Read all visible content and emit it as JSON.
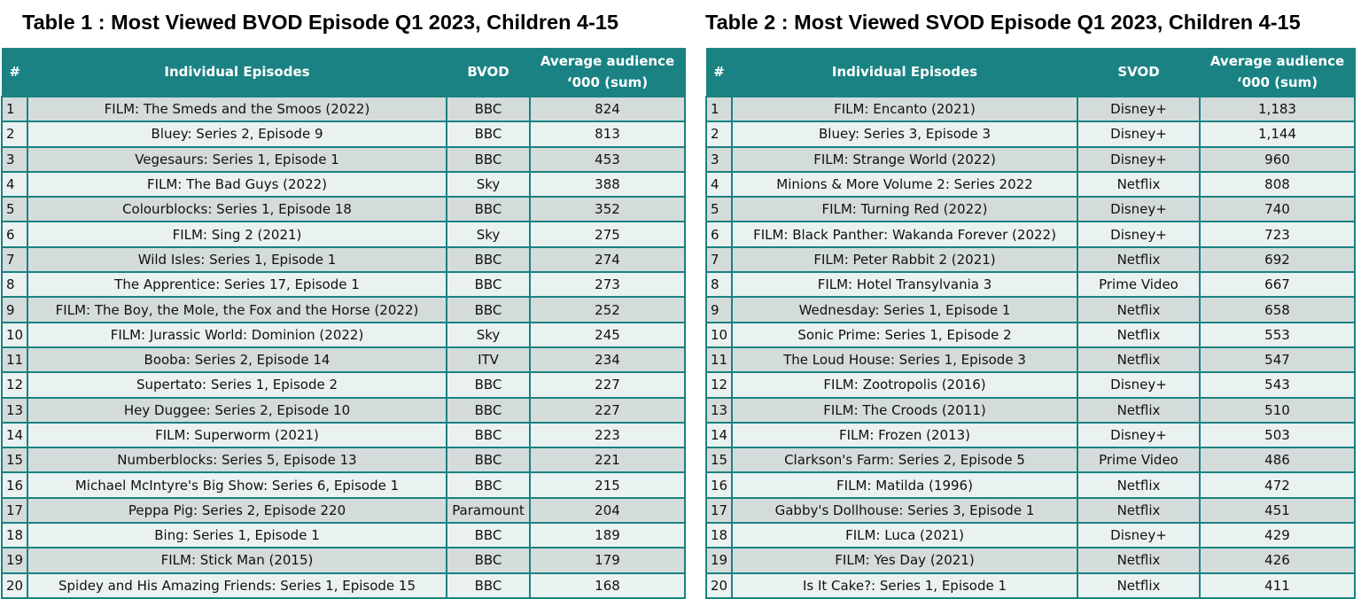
{
  "table1": {
    "title": "Table 1 : Most Viewed BVOD Episode Q1 2023, Children 4-15",
    "headers": [
      "#",
      "Individual Episodes",
      "BVOD",
      "Average audience\n‘000 (sum)"
    ],
    "rows": [
      [
        "1",
        "FILM: The Smeds and the Smoos (2022)",
        "BBC",
        "824"
      ],
      [
        "2",
        "Bluey: Series 2, Episode 9",
        "BBC",
        "813"
      ],
      [
        "3",
        "Vegesaurs: Series 1, Episode 1",
        "BBC",
        "453"
      ],
      [
        "4",
        "FILM: The Bad Guys (2022)",
        "Sky",
        "388"
      ],
      [
        "5",
        "Colourblocks: Series 1, Episode 18",
        "BBC",
        "352"
      ],
      [
        "6",
        "FILM: Sing 2 (2021)",
        "Sky",
        "275"
      ],
      [
        "7",
        "Wild Isles: Series 1, Episode 1",
        "BBC",
        "274"
      ],
      [
        "8",
        "The Apprentice: Series 17, Episode 1",
        "BBC",
        "273"
      ],
      [
        "9",
        "FILM: The Boy, the Mole, the Fox and the Horse (2022)",
        "BBC",
        "252"
      ],
      [
        "10",
        "FILM: Jurassic World: Dominion (2022)",
        "Sky",
        "245"
      ],
      [
        "11",
        "Booba: Series 2, Episode 14",
        "ITV",
        "234"
      ],
      [
        "12",
        "Supertato: Series 1, Episode 2",
        "BBC",
        "227"
      ],
      [
        "13",
        "Hey Duggee: Series 2, Episode 10",
        "BBC",
        "227"
      ],
      [
        "14",
        "FILM: Superworm (2021)",
        "BBC",
        "223"
      ],
      [
        "15",
        "Numberblocks: Series 5, Episode 13",
        "BBC",
        "221"
      ],
      [
        "16",
        "Michael McIntyre's Big Show: Series 6, Episode 1",
        "BBC",
        "215"
      ],
      [
        "17",
        "Peppa Pig: Series 2, Episode 220",
        "Paramount",
        "204"
      ],
      [
        "18",
        "Bing: Series 1, Episode 1",
        "BBC",
        "189"
      ],
      [
        "19",
        "FILM: Stick Man (2015)",
        "BBC",
        "179"
      ],
      [
        "20",
        "Spidey and His Amazing Friends: Series 1, Episode 15",
        "BBC",
        "168"
      ]
    ]
  },
  "table2": {
    "title": "Table 2 : Most Viewed SVOD Episode Q1 2023, Children 4-15",
    "headers": [
      "#",
      "Individual Episodes",
      "SVOD",
      "Average audience\n‘000 (sum)"
    ],
    "rows": [
      [
        "1",
        "FILM: Encanto (2021)",
        "Disney+",
        "1,183"
      ],
      [
        "2",
        "Bluey: Series 3, Episode 3",
        "Disney+",
        "1,144"
      ],
      [
        "3",
        "FILM: Strange World (2022)",
        "Disney+",
        "960"
      ],
      [
        "4",
        "Minions & More Volume 2: Series 2022",
        "Netflix",
        "808"
      ],
      [
        "5",
        "FILM: Turning Red (2022)",
        "Disney+",
        "740"
      ],
      [
        "6",
        "FILM: Black Panther: Wakanda Forever (2022)",
        "Disney+",
        "723"
      ],
      [
        "7",
        "FILM: Peter Rabbit 2 (2021)",
        "Netflix",
        "692"
      ],
      [
        "8",
        "FILM: Hotel Transylvania 3",
        "Prime Video",
        "667"
      ],
      [
        "9",
        "Wednesday: Series 1, Episode 1",
        "Netflix",
        "658"
      ],
      [
        "10",
        "Sonic Prime: Series 1, Episode 2",
        "Netflix",
        "553"
      ],
      [
        "11",
        "The Loud House: Series 1, Episode 3",
        "Netflix",
        "547"
      ],
      [
        "12",
        "FILM: Zootropolis (2016)",
        "Disney+",
        "543"
      ],
      [
        "13",
        "FILM: The Croods (2011)",
        "Netflix",
        "510"
      ],
      [
        "14",
        "FILM: Frozen (2013)",
        "Disney+",
        "503"
      ],
      [
        "15",
        "Clarkson's Farm: Series 2, Episode 5",
        "Prime Video",
        "486"
      ],
      [
        "16",
        "FILM: Matilda (1996)",
        "Netflix",
        "472"
      ],
      [
        "17",
        "Gabby's Dollhouse: Series 3, Episode 1",
        "Netflix",
        "451"
      ],
      [
        "18",
        "FILM: Luca (2021)",
        "Disney+",
        "429"
      ],
      [
        "19",
        "FILM: Yes Day (2021)",
        "Netflix",
        "426"
      ],
      [
        "20",
        "Is It Cake?: Series 1, Episode 1",
        "Netflix",
        "411"
      ]
    ]
  },
  "colors": {
    "header_bg": "#1a8283",
    "header_text": "#ffffff",
    "row_odd": "#d4dcdb",
    "row_even": "#eaf1f1",
    "border": "#1a8283"
  }
}
